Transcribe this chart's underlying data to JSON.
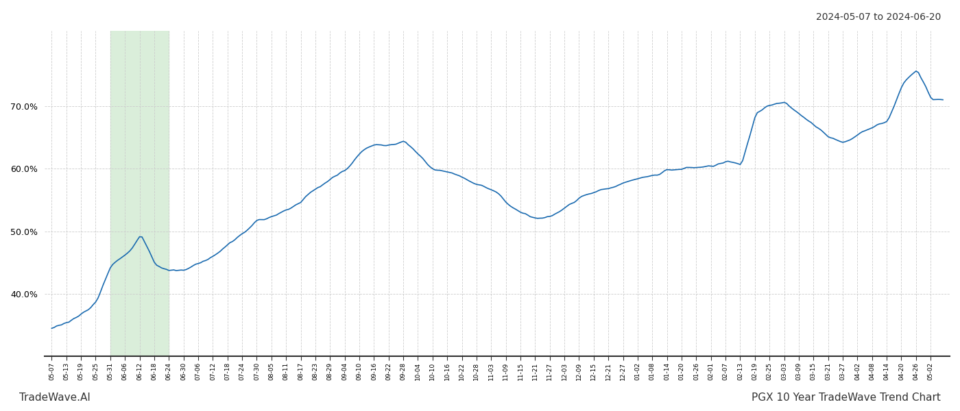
{
  "title_right": "2024-05-07 to 2024-06-20",
  "footer_left": "TradeWave.AI",
  "footer_right": "PGX 10 Year TradeWave Trend Chart",
  "line_color": "#1b6bb0",
  "line_width": 1.2,
  "bg_color": "#ffffff",
  "grid_color": "#cccccc",
  "shade_color": "#daeeda",
  "ylim_min": 30.0,
  "ylim_max": 82.0,
  "yticks": [
    40.0,
    50.0,
    60.0,
    70.0
  ],
  "x_labels": [
    "05-07",
    "05-13",
    "05-19",
    "05-25",
    "05-31",
    "06-06",
    "06-12",
    "06-18",
    "06-24",
    "06-30",
    "07-06",
    "07-12",
    "07-18",
    "07-24",
    "07-30",
    "08-05",
    "08-11",
    "08-17",
    "08-23",
    "08-29",
    "09-04",
    "09-10",
    "09-16",
    "09-22",
    "09-28",
    "10-04",
    "10-10",
    "10-16",
    "10-22",
    "10-28",
    "11-03",
    "11-09",
    "11-15",
    "11-21",
    "11-27",
    "12-03",
    "12-09",
    "12-15",
    "12-21",
    "12-27",
    "01-02",
    "01-08",
    "01-14",
    "01-20",
    "01-26",
    "02-01",
    "02-07",
    "02-13",
    "02-19",
    "02-25",
    "03-03",
    "03-09",
    "03-15",
    "03-21",
    "03-27",
    "04-02",
    "04-08",
    "04-14",
    "04-20",
    "04-26",
    "05-02"
  ],
  "shade_label_start": "06-06",
  "shade_label_end": "06-24",
  "n_labels": 61
}
